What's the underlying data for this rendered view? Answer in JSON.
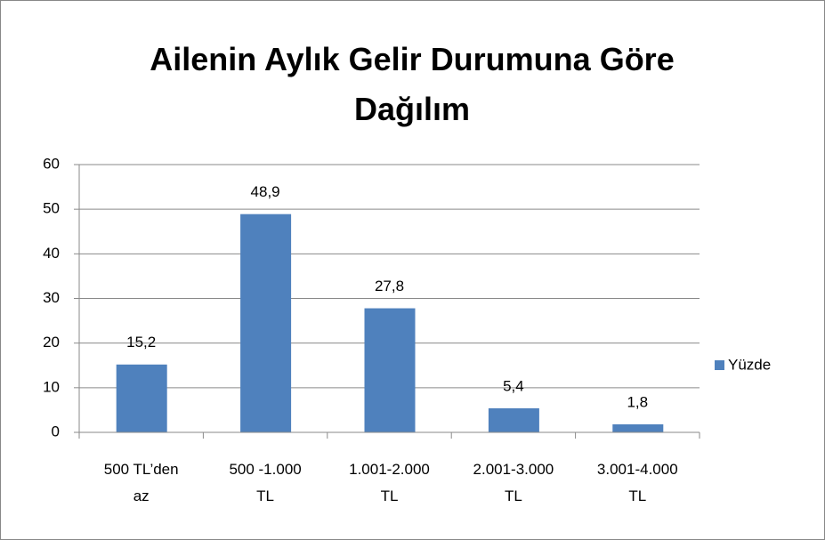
{
  "chart_data": {
    "type": "bar",
    "title": "Ailenin Aylık Gelir Durumuna Göre Dağılım",
    "categories": [
      "500 TL’den az",
      "500 -1.000 TL",
      "1.001-2.000 TL",
      "2.001-3.000 TL",
      "3.001-4.000 TL"
    ],
    "series": [
      {
        "name": "Yüzde",
        "color": "#4f81bd",
        "values": [
          15.2,
          48.9,
          27.8,
          5.4,
          1.8
        ],
        "value_labels": [
          "15,2",
          "48,9",
          "27,8",
          "5,4",
          "1,8"
        ]
      }
    ],
    "ylim": [
      0,
      60
    ],
    "yticks": [
      0,
      10,
      20,
      30,
      40,
      50,
      60
    ],
    "grid": true,
    "legend": "right"
  }
}
